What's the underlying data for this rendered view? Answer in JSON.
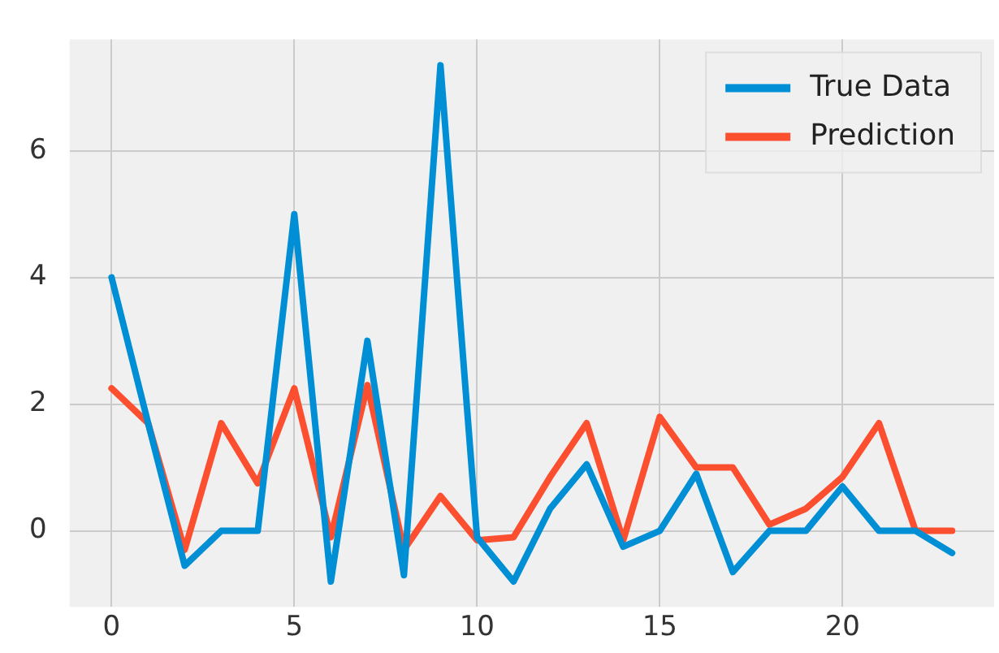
{
  "chart_data": {
    "type": "line",
    "x": [
      0,
      1,
      2,
      3,
      4,
      5,
      6,
      7,
      8,
      9,
      10,
      11,
      12,
      13,
      14,
      15,
      16,
      17,
      18,
      19,
      20,
      21,
      22,
      23
    ],
    "series": [
      {
        "name": "True Data",
        "color": "#008fd5",
        "values": [
          4,
          1.7,
          -0.55,
          0,
          0,
          5,
          -0.8,
          3,
          -0.7,
          7.35,
          -0.1,
          -0.8,
          0.35,
          1.05,
          -0.25,
          0,
          0.9,
          -0.65,
          0,
          0,
          0.7,
          0,
          0,
          -0.35
        ]
      },
      {
        "name": "Prediction",
        "color": "#fc4f30",
        "values": [
          2.25,
          1.7,
          -0.3,
          1.7,
          0.75,
          2.25,
          -0.1,
          2.3,
          -0.3,
          0.55,
          -0.15,
          -0.1,
          0.85,
          1.7,
          -0.15,
          1.8,
          1.0,
          1.0,
          0.1,
          0.35,
          0.85,
          1.7,
          0,
          0
        ]
      }
    ],
    "xlim": [
      -1.15,
      24.15
    ],
    "xticks": [
      0,
      5,
      10,
      15,
      20
    ],
    "ylim": [
      -1.2,
      7.76
    ],
    "yticks": [
      0,
      2,
      4,
      6
    ],
    "grid": true,
    "legend": "top right",
    "marker": "none",
    "line_style": "solid"
  }
}
